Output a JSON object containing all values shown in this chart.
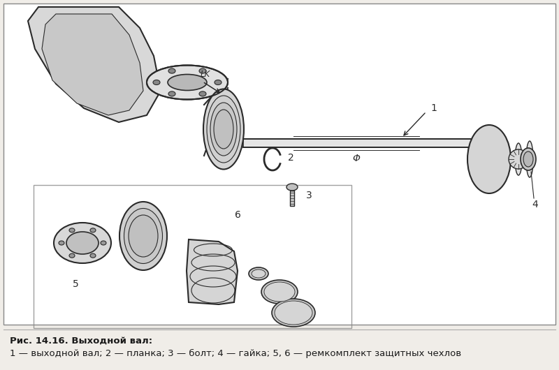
{
  "caption_bold": "Рис. 14.16. Выходной вал:",
  "caption_normal": "1 — выходной вал; 2 — планка; 3 — болт; 4 — гайка; 5, 6 — ремкомплект защитных чехлов",
  "bg_color": "#f0ede8",
  "line_color": "#2a2a2a",
  "border_color": "#888888",
  "fig_width": 8.0,
  "fig_height": 5.3,
  "dpi": 100
}
